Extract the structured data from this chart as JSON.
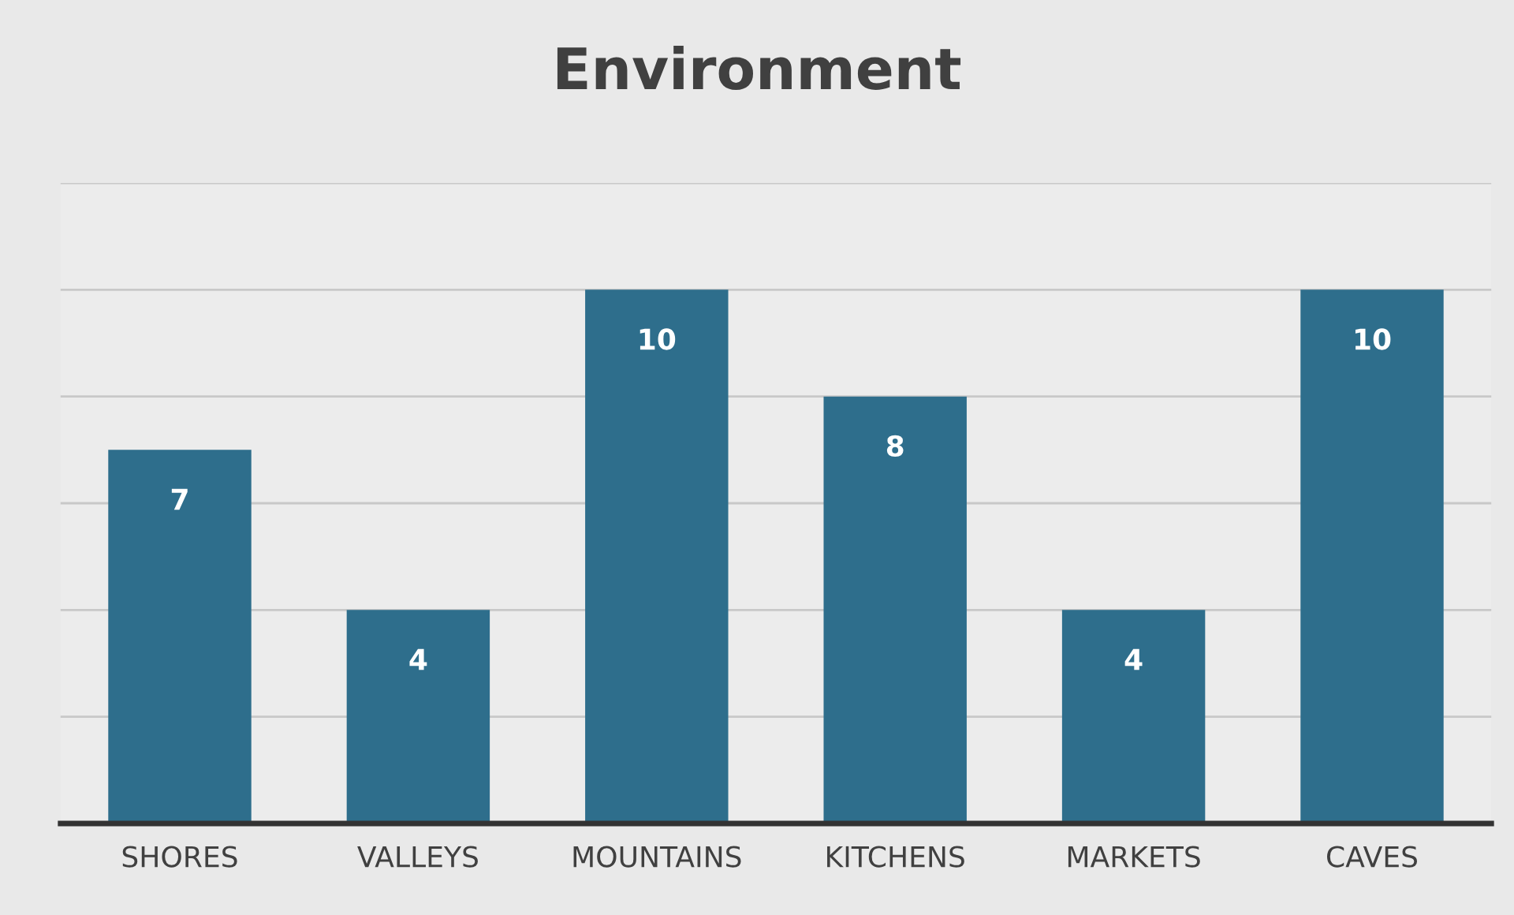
{
  "chart_data": {
    "type": "bar",
    "title": "Environment",
    "categories": [
      "SHORES",
      "VALLEYS",
      "MOUNTAINS",
      "KITCHENS",
      "MARKETS",
      "CAVES"
    ],
    "values": [
      7,
      4,
      10,
      8,
      4,
      10
    ],
    "color": "#2e6e8c",
    "ylim": [
      0,
      12
    ],
    "yticks": [
      {
        "value": 0,
        "label": null
      },
      {
        "value": 2,
        "label": null
      },
      {
        "value": 4,
        "label": null
      },
      {
        "value": 6,
        "label": null
      },
      {
        "value": 8,
        "label": null
      },
      {
        "value": 10,
        "label": null
      },
      {
        "value": 12,
        "label": null
      }
    ],
    "tick_labels": "x",
    "grid": "y",
    "data_labels": true,
    "legend": false
  }
}
